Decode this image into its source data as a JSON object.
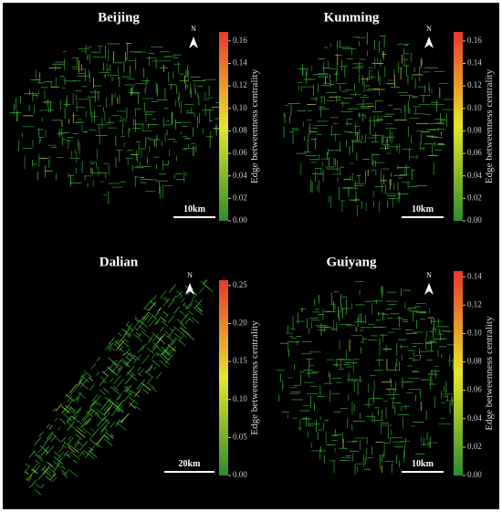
{
  "panels": [
    {
      "title": "Beijing",
      "north_label": "N",
      "scale_label": "10km",
      "colorbar": {
        "label": "Edge betweenness centrality",
        "lim": [
          0,
          0.168
        ],
        "ticks": [
          {
            "value": 0,
            "label": "0.00"
          },
          {
            "value": 0.02,
            "label": "0.02"
          },
          {
            "value": 0.04,
            "label": "0.04"
          },
          {
            "value": 0.06,
            "label": "0.06"
          },
          {
            "value": 0.08,
            "label": "0.08"
          },
          {
            "value": 0.1,
            "label": "0.10"
          },
          {
            "value": 0.12,
            "label": "0.12"
          },
          {
            "value": 0.14,
            "label": "0.14"
          },
          {
            "value": 0.16,
            "label": "0.16"
          }
        ]
      }
    },
    {
      "title": "Kunming",
      "north_label": "N",
      "scale_label": "10km",
      "colorbar": {
        "label": "Edge betweenness centrality",
        "lim": [
          0,
          0.168
        ],
        "ticks": [
          {
            "value": 0,
            "label": "0.00"
          },
          {
            "value": 0.02,
            "label": "0.02"
          },
          {
            "value": 0.04,
            "label": "0.04"
          },
          {
            "value": 0.06,
            "label": "0.06"
          },
          {
            "value": 0.08,
            "label": "0.08"
          },
          {
            "value": 0.1,
            "label": "0.10"
          },
          {
            "value": 0.12,
            "label": "0.12"
          },
          {
            "value": 0.14,
            "label": "0.14"
          },
          {
            "value": 0.16,
            "label": "0.16"
          }
        ]
      }
    },
    {
      "title": "Dalian",
      "north_label": "N",
      "scale_label": "20km",
      "colorbar": {
        "label": "Edge betweenness centrality",
        "lim": [
          0,
          0.257
        ],
        "ticks": [
          {
            "value": 0,
            "label": "0.00"
          },
          {
            "value": 0.05,
            "label": "0.05"
          },
          {
            "value": 0.1,
            "label": "0.10"
          },
          {
            "value": 0.15,
            "label": "0.15"
          },
          {
            "value": 0.2,
            "label": "0.20"
          },
          {
            "value": 0.25,
            "label": "0.25"
          }
        ]
      }
    },
    {
      "title": "Guiyang",
      "north_label": "N",
      "scale_label": "10km",
      "colorbar": {
        "label": "Edge betweenness centrality",
        "lim": [
          0,
          0.144
        ],
        "ticks": [
          {
            "value": 0,
            "label": "0.00"
          },
          {
            "value": 0.02,
            "label": "0.02"
          },
          {
            "value": 0.04,
            "label": "0.04"
          },
          {
            "value": 0.06,
            "label": "0.06"
          },
          {
            "value": 0.08,
            "label": "0.08"
          },
          {
            "value": 0.1,
            "label": "0.10"
          },
          {
            "value": 0.12,
            "label": "0.12"
          },
          {
            "value": 0.14,
            "label": "0.14"
          }
        ]
      }
    }
  ]
}
